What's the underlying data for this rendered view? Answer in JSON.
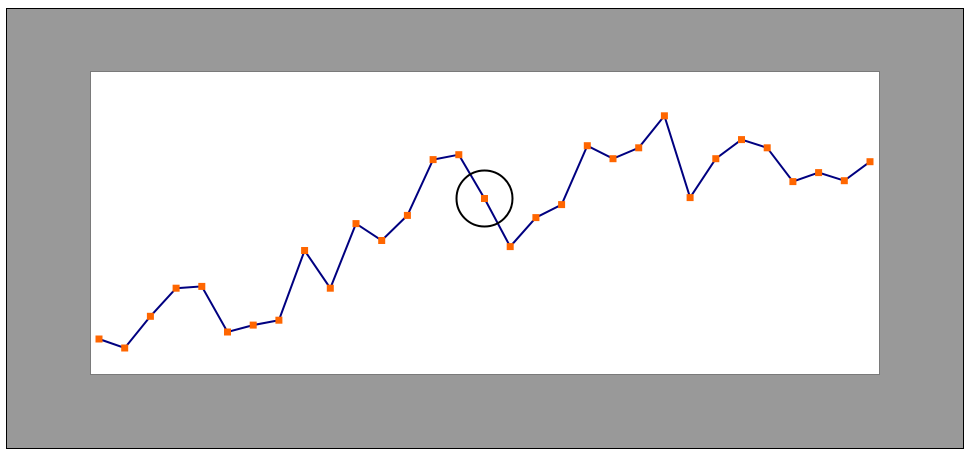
{
  "colors": {
    "frame_background": "#999999",
    "plot_background": "#ffffff",
    "line": "#000080",
    "marker": "#ff6600",
    "highlight_circle": "#000000"
  },
  "chart_data": {
    "type": "line",
    "title": "",
    "xlabel": "",
    "ylabel": "",
    "grid": false,
    "legend": "none",
    "marker_shape": "square",
    "ylim": [
      0,
      100
    ],
    "x": [
      1,
      2,
      3,
      4,
      5,
      6,
      7,
      8,
      9,
      10,
      11,
      12,
      13,
      14,
      15,
      16,
      17,
      18,
      19,
      20,
      21,
      22,
      23,
      24,
      25,
      26,
      27,
      28,
      29,
      30,
      31
    ],
    "series": [
      {
        "values": [
          11.6,
          8.6,
          19.1,
          28.4,
          29.0,
          13.9,
          16.2,
          17.8,
          40.9,
          28.4,
          49.8,
          44.2,
          52.5,
          71.0,
          72.6,
          58.1,
          42.2,
          51.8,
          56.1,
          75.6,
          71.3,
          74.9,
          85.5,
          58.4,
          71.3,
          77.6,
          74.9,
          63.7,
          66.7,
          64.0,
          70.3
        ]
      }
    ],
    "highlight": {
      "point_index": 15,
      "shape": "circle"
    }
  }
}
